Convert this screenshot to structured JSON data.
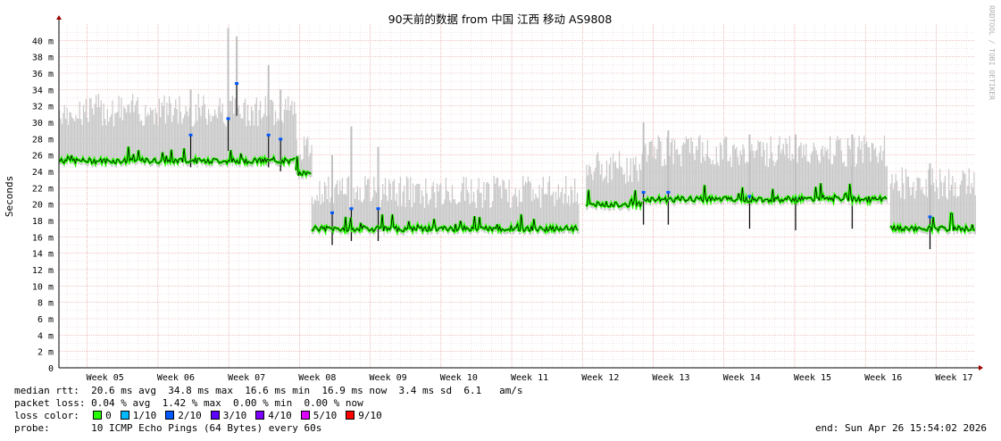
{
  "chart_data": {
    "type": "area",
    "title": "90天前的数据 from 中国 江西 移动 AS9808",
    "ylabel": "Seconds",
    "watermark": "RRDTOOL / TOBI OETIKER",
    "ylim_ms": [
      0,
      42
    ],
    "y_ticks": [
      {
        "v": 0,
        "label": "0"
      },
      {
        "v": 2,
        "label": "2 m"
      },
      {
        "v": 4,
        "label": "4 m"
      },
      {
        "v": 6,
        "label": "6 m"
      },
      {
        "v": 8,
        "label": "8 m"
      },
      {
        "v": 10,
        "label": "10 m"
      },
      {
        "v": 12,
        "label": "12 m"
      },
      {
        "v": 14,
        "label": "14 m"
      },
      {
        "v": 16,
        "label": "16 m"
      },
      {
        "v": 18,
        "label": "18 m"
      },
      {
        "v": 20,
        "label": "20 m"
      },
      {
        "v": 22,
        "label": "22 m"
      },
      {
        "v": 24,
        "label": "24 m"
      },
      {
        "v": 26,
        "label": "26 m"
      },
      {
        "v": 28,
        "label": "28 m"
      },
      {
        "v": 30,
        "label": "30 m"
      },
      {
        "v": 32,
        "label": "32 m"
      },
      {
        "v": 34,
        "label": "34 m"
      },
      {
        "v": 36,
        "label": "36 m"
      },
      {
        "v": 38,
        "label": "38 m"
      },
      {
        "v": 40,
        "label": "40 m"
      }
    ],
    "x_range_weeks": [
      4.6,
      17.55
    ],
    "weeks": [
      {
        "label": "Week 05",
        "w": 5
      },
      {
        "label": "Week 06",
        "w": 6
      },
      {
        "label": "Week 07",
        "w": 7
      },
      {
        "label": "Week 08",
        "w": 8
      },
      {
        "label": "Week 09",
        "w": 9
      },
      {
        "label": "Week 10",
        "w": 10
      },
      {
        "label": "Week 11",
        "w": 11
      },
      {
        "label": "Week 12",
        "w": 12
      },
      {
        "label": "Week 13",
        "w": 13
      },
      {
        "label": "Week 14",
        "w": 14
      },
      {
        "label": "Week 15",
        "w": 15
      },
      {
        "label": "Week 16",
        "w": 16
      },
      {
        "label": "Week 17",
        "w": 17
      }
    ],
    "segments": [
      {
        "from": 4.6,
        "to": 7.95,
        "median": 25.3,
        "spread_top": 31.5
      },
      {
        "from": 7.95,
        "to": 8.17,
        "median": 23.8,
        "spread_top": 27
      },
      {
        "from": 8.17,
        "to": 11.95,
        "median": 17.0,
        "spread_top": 21.5
      },
      {
        "from": 12.05,
        "to": 12.85,
        "median": 20.0,
        "spread_top": 24.5
      },
      {
        "from": 12.85,
        "to": 16.3,
        "median": 20.6,
        "spread_top": 26.5
      },
      {
        "from": 16.35,
        "to": 17.55,
        "median": 17.0,
        "spread_top": 22.5
      }
    ],
    "gaps": [
      [
        16.3,
        16.35
      ]
    ],
    "spikes": [
      {
        "x": 6.98,
        "top": 41.5,
        "median": 30.5
      },
      {
        "x": 7.1,
        "top": 40.5,
        "median": 34.8
      },
      {
        "x": 7.55,
        "top": 37,
        "median": 28.5
      },
      {
        "x": 7.72,
        "top": 34,
        "median": 28
      },
      {
        "x": 6.45,
        "top": 34,
        "median": 28.5
      },
      {
        "x": 8.72,
        "top": 29.5,
        "median": 19.5
      },
      {
        "x": 8.45,
        "top": 26,
        "median": 19
      },
      {
        "x": 9.1,
        "top": 27,
        "median": 19.5
      },
      {
        "x": 12.85,
        "top": 30,
        "median": 21.5
      },
      {
        "x": 13.2,
        "top": 29,
        "median": 21.5
      },
      {
        "x": 14.35,
        "top": 28.5,
        "median": 21
      },
      {
        "x": 15.0,
        "top": 28.5,
        "median": 20.8
      },
      {
        "x": 15.8,
        "top": 28.5,
        "median": 21
      },
      {
        "x": 16.9,
        "top": 25,
        "median": 18.5
      }
    ]
  },
  "legend": {
    "median_rtt_label": "median rtt:",
    "median_rtt_values": "20.6 ms avg  34.8 ms max  16.6 ms min  16.9 ms now  3.4 ms sd  6.1   am/s",
    "packet_loss_label": "packet loss:",
    "packet_loss_values": "0.04 % avg  1.42 % max  0.00 % min  0.00 % now",
    "loss_color_label": "loss color:",
    "loss_colors": [
      {
        "label": "0",
        "color": "#26ff00"
      },
      {
        "label": "1/10",
        "color": "#00b8ff"
      },
      {
        "label": "2/10",
        "color": "#0059ff"
      },
      {
        "label": "3/10",
        "color": "#5e00ff"
      },
      {
        "label": "4/10",
        "color": "#7e00ff"
      },
      {
        "label": "5/10",
        "color": "#dd00ff"
      },
      {
        "label": "9/10",
        "color": "#ff0000"
      }
    ],
    "probe_label": "probe:",
    "probe_value": "10 ICMP Echo Pings (64 Bytes) every 60s",
    "end": "end: Sun Apr 26 15:54:02 2026"
  }
}
